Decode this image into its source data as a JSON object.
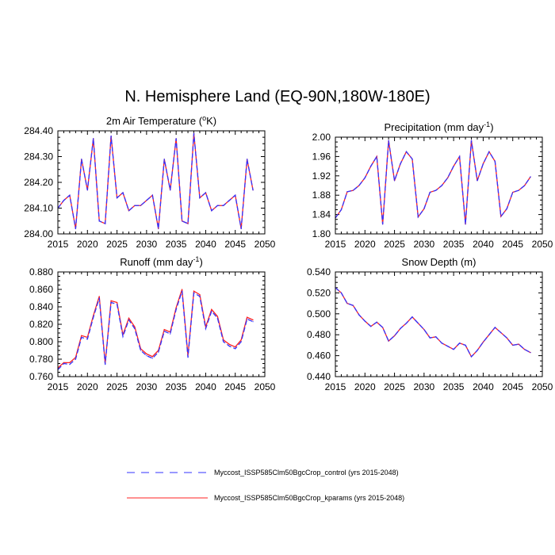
{
  "figure": {
    "title": "N. Hemisphere Land (EQ-90N,180W-180E)"
  },
  "colors": {
    "control": "#3333ff",
    "kparams": "#ff2222",
    "axis": "#000000"
  },
  "legend": {
    "entries": [
      {
        "name": "Myccost_ISSP585Clm50BgcCrop_control (yrs 2015-2048)",
        "style": "dashed",
        "color": "#3333ff"
      },
      {
        "name": "Myccost_ISSP585Clm50BgcCrop_kparams (yrs 2015-2048)",
        "style": "solid",
        "color": "#ff2222"
      }
    ]
  },
  "chart_data": [
    {
      "type": "line",
      "title": "2m Air Temperature (°K)",
      "title_main": "2m Air Temperature (",
      "title_sup": "o",
      "title_after": "K)",
      "xlim": [
        2015,
        2050
      ],
      "xticks": [
        2015,
        2020,
        2025,
        2030,
        2035,
        2040,
        2045,
        2050
      ],
      "ylim": [
        284.0,
        284.4
      ],
      "yticks": [
        284.0,
        284.1,
        284.2,
        284.3,
        284.4
      ],
      "ytick_labels": [
        "284.00",
        "284.10",
        "284.20",
        "284.30",
        "284.40"
      ],
      "x": [
        2015,
        2016,
        2017,
        2018,
        2019,
        2020,
        2021,
        2022,
        2023,
        2024,
        2025,
        2026,
        2027,
        2028,
        2029,
        2030,
        2031,
        2032,
        2033,
        2034,
        2035,
        2036,
        2037,
        2038,
        2039,
        2040,
        2041,
        2042,
        2043,
        2044,
        2045,
        2046,
        2047,
        2048
      ],
      "series": [
        {
          "name": "control",
          "values": [
            284.1,
            284.13,
            284.15,
            284.02,
            284.29,
            284.17,
            284.37,
            284.05,
            284.04,
            284.38,
            284.14,
            284.16,
            284.09,
            284.11,
            284.11,
            284.13,
            284.15,
            284.02,
            284.29,
            284.17,
            284.37,
            284.05,
            284.04,
            284.39,
            284.14,
            284.16,
            284.09,
            284.11,
            284.11,
            284.13,
            284.15,
            284.02,
            284.29,
            284.17
          ]
        },
        {
          "name": "kparams",
          "values": [
            284.1,
            284.13,
            284.15,
            284.02,
            284.29,
            284.17,
            284.37,
            284.05,
            284.04,
            284.38,
            284.14,
            284.16,
            284.09,
            284.11,
            284.11,
            284.13,
            284.15,
            284.02,
            284.29,
            284.17,
            284.37,
            284.05,
            284.04,
            284.39,
            284.14,
            284.16,
            284.09,
            284.11,
            284.11,
            284.13,
            284.15,
            284.02,
            284.29,
            284.17
          ]
        }
      ]
    },
    {
      "type": "line",
      "title": "Precipitation (mm day-1)",
      "title_main": "Precipitation (mm day",
      "title_sup": "-1",
      "title_after": ")",
      "xlim": [
        2015,
        2050
      ],
      "xticks": [
        2015,
        2020,
        2025,
        2030,
        2035,
        2040,
        2045,
        2050
      ],
      "ylim": [
        1.8,
        2.0
      ],
      "yticks": [
        1.8,
        1.84,
        1.88,
        1.92,
        1.96,
        2.0
      ],
      "ytick_labels": [
        "1.80",
        "1.84",
        "1.88",
        "1.92",
        "1.96",
        "2.00"
      ],
      "x": [
        2015,
        2016,
        2017,
        2018,
        2019,
        2020,
        2021,
        2022,
        2023,
        2024,
        2025,
        2026,
        2027,
        2028,
        2029,
        2030,
        2031,
        2032,
        2033,
        2034,
        2035,
        2036,
        2037,
        2038,
        2039,
        2040,
        2041,
        2042,
        2043,
        2044,
        2045,
        2046,
        2047,
        2048
      ],
      "series": [
        {
          "name": "control",
          "values": [
            1.833,
            1.85,
            1.887,
            1.89,
            1.9,
            1.916,
            1.94,
            1.96,
            1.82,
            1.993,
            1.91,
            1.945,
            1.97,
            1.955,
            1.835,
            1.852,
            1.886,
            1.89,
            1.9,
            1.916,
            1.94,
            1.96,
            1.82,
            1.993,
            1.91,
            1.945,
            1.97,
            1.95,
            1.836,
            1.852,
            1.886,
            1.89,
            1.9,
            1.918
          ]
        },
        {
          "name": "kparams",
          "values": [
            1.833,
            1.85,
            1.887,
            1.89,
            1.9,
            1.916,
            1.94,
            1.96,
            1.82,
            1.993,
            1.91,
            1.945,
            1.97,
            1.955,
            1.835,
            1.852,
            1.886,
            1.89,
            1.9,
            1.916,
            1.94,
            1.96,
            1.82,
            1.993,
            1.91,
            1.945,
            1.97,
            1.95,
            1.836,
            1.852,
            1.886,
            1.89,
            1.9,
            1.918
          ]
        }
      ]
    },
    {
      "type": "line",
      "title": "Runoff (mm day-1)",
      "title_main": "Runoff (mm day",
      "title_sup": "-1",
      "title_after": ")",
      "xlim": [
        2015,
        2050
      ],
      "xticks": [
        2015,
        2020,
        2025,
        2030,
        2035,
        2040,
        2045,
        2050
      ],
      "ylim": [
        0.76,
        0.88
      ],
      "yticks": [
        0.76,
        0.78,
        0.8,
        0.82,
        0.84,
        0.86,
        0.88
      ],
      "ytick_labels": [
        "0.760",
        "0.780",
        "0.800",
        "0.820",
        "0.840",
        "0.860",
        "0.880"
      ],
      "x": [
        2015,
        2016,
        2017,
        2018,
        2019,
        2020,
        2021,
        2022,
        2023,
        2024,
        2025,
        2026,
        2027,
        2028,
        2029,
        2030,
        2031,
        2032,
        2033,
        2034,
        2035,
        2036,
        2037,
        2038,
        2039,
        2040,
        2041,
        2042,
        2043,
        2044,
        2045,
        2046,
        2047,
        2048
      ],
      "series": [
        {
          "name": "control",
          "values": [
            0.768,
            0.775,
            0.774,
            0.78,
            0.805,
            0.803,
            0.828,
            0.85,
            0.774,
            0.845,
            0.843,
            0.806,
            0.825,
            0.815,
            0.79,
            0.784,
            0.781,
            0.788,
            0.812,
            0.809,
            0.837,
            0.858,
            0.782,
            0.856,
            0.852,
            0.815,
            0.835,
            0.827,
            0.8,
            0.795,
            0.792,
            0.8,
            0.826,
            0.823
          ]
        },
        {
          "name": "kparams",
          "values": [
            0.77,
            0.776,
            0.776,
            0.782,
            0.807,
            0.805,
            0.83,
            0.852,
            0.775,
            0.847,
            0.845,
            0.808,
            0.827,
            0.817,
            0.792,
            0.786,
            0.783,
            0.79,
            0.814,
            0.811,
            0.839,
            0.86,
            0.784,
            0.858,
            0.854,
            0.817,
            0.837,
            0.829,
            0.802,
            0.797,
            0.794,
            0.802,
            0.828,
            0.825
          ]
        }
      ]
    },
    {
      "type": "line",
      "title": "Snow Depth (m)",
      "title_main": "Snow Depth (m)",
      "title_sup": "",
      "title_after": "",
      "xlim": [
        2015,
        2050
      ],
      "xticks": [
        2015,
        2020,
        2025,
        2030,
        2035,
        2040,
        2045,
        2050
      ],
      "ylim": [
        0.44,
        0.54
      ],
      "yticks": [
        0.44,
        0.46,
        0.48,
        0.5,
        0.52,
        0.54
      ],
      "ytick_labels": [
        "0.440",
        "0.460",
        "0.480",
        "0.500",
        "0.520",
        "0.540"
      ],
      "x": [
        2015,
        2016,
        2017,
        2018,
        2019,
        2020,
        2021,
        2022,
        2023,
        2024,
        2025,
        2026,
        2027,
        2028,
        2029,
        2030,
        2031,
        2032,
        2033,
        2034,
        2035,
        2036,
        2037,
        2038,
        2039,
        2040,
        2041,
        2042,
        2043,
        2044,
        2045,
        2046,
        2047,
        2048
      ],
      "series": [
        {
          "name": "control",
          "values": [
            0.525,
            0.52,
            0.51,
            0.508,
            0.499,
            0.493,
            0.488,
            0.492,
            0.487,
            0.474,
            0.479,
            0.486,
            0.491,
            0.497,
            0.491,
            0.485,
            0.477,
            0.478,
            0.472,
            0.469,
            0.466,
            0.472,
            0.47,
            0.459,
            0.465,
            0.473,
            0.48,
            0.487,
            0.482,
            0.477,
            0.47,
            0.471,
            0.466,
            0.463
          ]
        },
        {
          "name": "kparams",
          "values": [
            0.525,
            0.52,
            0.51,
            0.508,
            0.499,
            0.493,
            0.488,
            0.492,
            0.487,
            0.474,
            0.479,
            0.486,
            0.491,
            0.497,
            0.491,
            0.485,
            0.477,
            0.478,
            0.472,
            0.469,
            0.466,
            0.472,
            0.47,
            0.459,
            0.465,
            0.473,
            0.48,
            0.487,
            0.482,
            0.477,
            0.47,
            0.471,
            0.466,
            0.463
          ]
        }
      ]
    }
  ]
}
